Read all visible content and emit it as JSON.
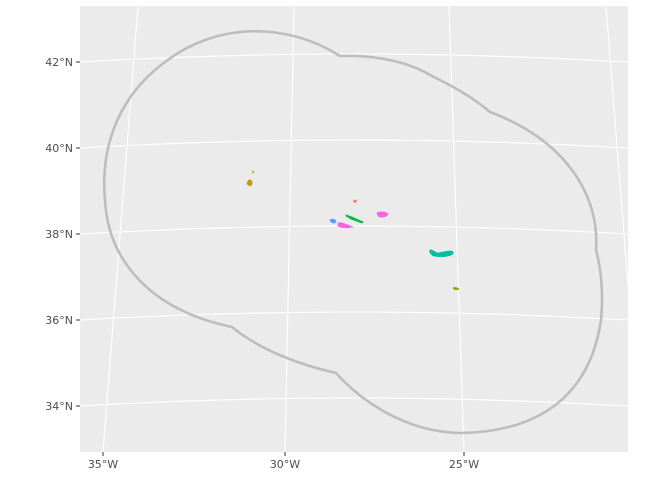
{
  "map": {
    "type": "projected-map",
    "panel_background": "#ebebeb",
    "graticule_color": "#ffffff",
    "boundary_color": "#bdbdbd",
    "y_axis_labels": [
      "42°N",
      "40°N",
      "38°N",
      "36°N",
      "34°N"
    ],
    "x_axis_labels": [
      "35°W",
      "30°W",
      "25°W"
    ],
    "features": [
      {
        "name": "island-flores",
        "color": "#c49a00"
      },
      {
        "name": "island-corvo",
        "color": "#c49a00"
      },
      {
        "name": "island-graciosa",
        "color": "#f8766d"
      },
      {
        "name": "island-sao-jorge",
        "color": "#00ba38"
      },
      {
        "name": "island-faial",
        "color": "#619cff"
      },
      {
        "name": "island-pico",
        "color": "#f564e3"
      },
      {
        "name": "island-terceira",
        "color": "#f564e3"
      },
      {
        "name": "island-sao-miguel",
        "color": "#00bfa0"
      },
      {
        "name": "island-santa-maria",
        "color": "#7cae00"
      }
    ]
  }
}
